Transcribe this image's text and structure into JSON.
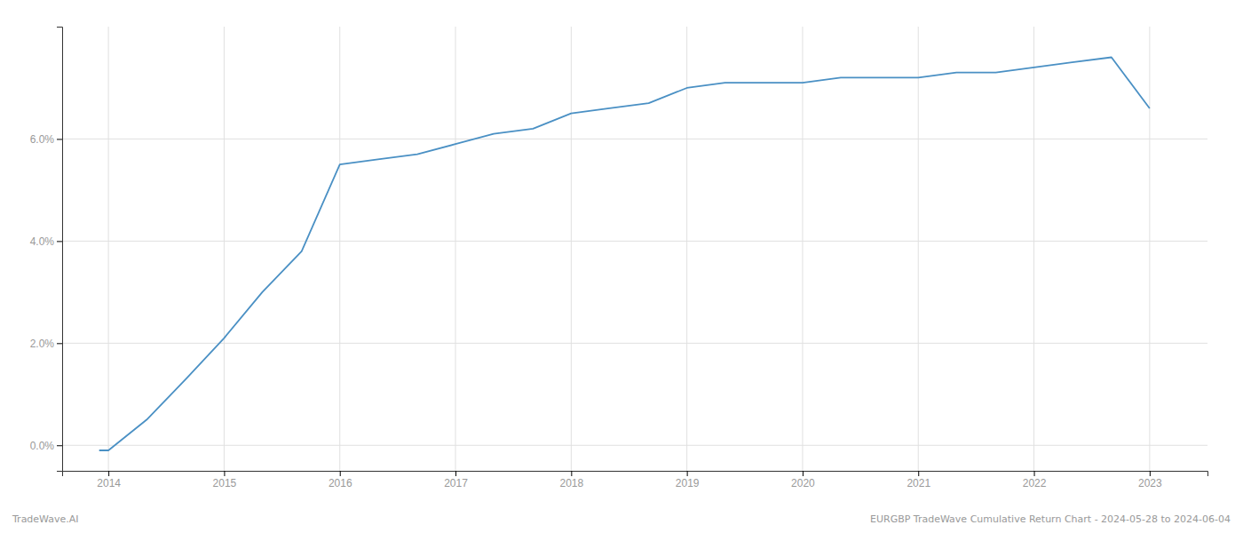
{
  "chart_data": {
    "type": "line",
    "x": [
      2013.92,
      2014.0,
      2014.33,
      2014.67,
      2015.0,
      2015.33,
      2015.67,
      2016.0,
      2016.33,
      2016.67,
      2017.0,
      2017.33,
      2017.67,
      2018.0,
      2018.33,
      2018.67,
      2019.0,
      2019.33,
      2019.67,
      2020.0,
      2020.33,
      2020.67,
      2021.0,
      2021.33,
      2021.67,
      2022.0,
      2022.33,
      2022.67,
      2023.0
    ],
    "values": [
      -0.001,
      -0.001,
      0.005,
      0.013,
      0.021,
      0.03,
      0.038,
      0.055,
      0.056,
      0.057,
      0.059,
      0.061,
      0.062,
      0.065,
      0.066,
      0.067,
      0.07,
      0.071,
      0.071,
      0.071,
      0.072,
      0.072,
      0.072,
      0.073,
      0.073,
      0.074,
      0.075,
      0.076,
      0.066
    ],
    "color": "#4a90c4",
    "xlim": [
      2013.6,
      2023.5
    ],
    "ylim": [
      -0.005,
      0.082
    ],
    "xticks": [
      2014,
      2015,
      2016,
      2017,
      2018,
      2019,
      2020,
      2021,
      2022,
      2023
    ],
    "yticks": [
      {
        "value": 0.0,
        "label": "0.0%"
      },
      {
        "value": 0.02,
        "label": "2.0%"
      },
      {
        "value": 0.04,
        "label": "4.0%"
      },
      {
        "value": 0.06,
        "label": "6.0%"
      }
    ],
    "grid": true,
    "annotations": [
      "TradeWave.AI",
      "EURGBP TradeWave Cumulative Return Chart - 2024-05-28 to 2024-06-04"
    ]
  }
}
